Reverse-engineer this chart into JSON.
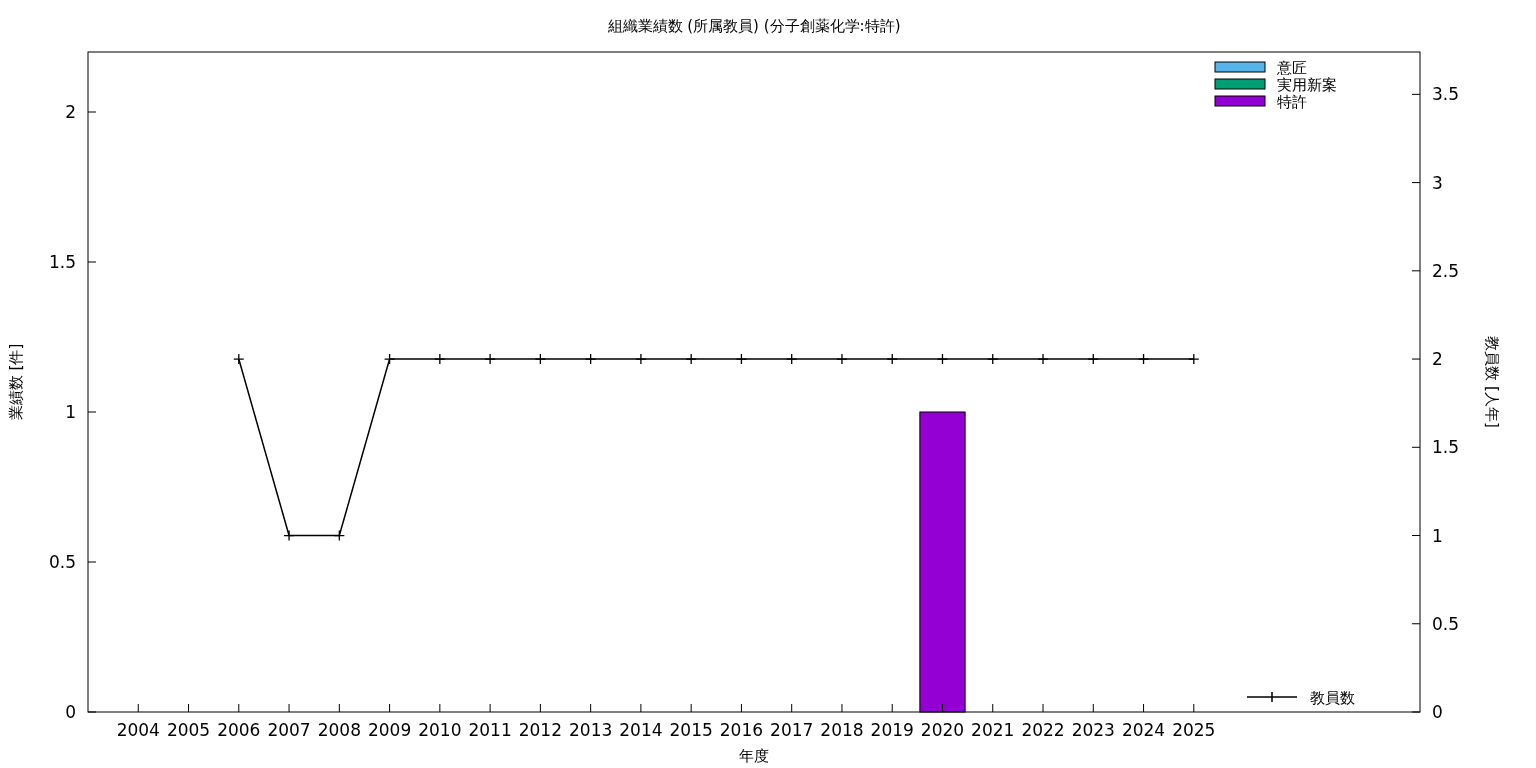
{
  "chart_data": {
    "type": "bar",
    "title": "組織業績数 (所属教員) (分子創薬化学:特許)",
    "xlabel": "年度",
    "ylabel": "業績数 [件]",
    "y2label": "教員数 [人年]",
    "x": [
      2004,
      2005,
      2006,
      2007,
      2008,
      2009,
      2010,
      2011,
      2012,
      2013,
      2014,
      2015,
      2016,
      2017,
      2018,
      2019,
      2020,
      2021,
      2022,
      2023,
      2024,
      2025
    ],
    "xlim": [
      2003,
      2029.5
    ],
    "xticks": [
      2004,
      2005,
      2006,
      2007,
      2008,
      2009,
      2010,
      2011,
      2012,
      2013,
      2014,
      2015,
      2016,
      2017,
      2018,
      2019,
      2020,
      2021,
      2022,
      2023,
      2024,
      2025
    ],
    "ylim": [
      0,
      2.2
    ],
    "yticks": [
      0,
      0.5,
      1,
      1.5,
      2
    ],
    "y2lim": [
      0,
      3.74
    ],
    "y2ticks": [
      0,
      0.5,
      1,
      1.5,
      2,
      2.5,
      3,
      3.5
    ],
    "legend": "right",
    "grid": false,
    "series": [
      {
        "name": "意匠",
        "color": "#56b4e9",
        "values": [
          0,
          0,
          0,
          0,
          0,
          0,
          0,
          0,
          0,
          0,
          0,
          0,
          0,
          0,
          0,
          0,
          0,
          0,
          0,
          0,
          0,
          0
        ]
      },
      {
        "name": "実用新案",
        "color": "#009e73",
        "values": [
          0,
          0,
          0,
          0,
          0,
          0,
          0,
          0,
          0,
          0,
          0,
          0,
          0,
          0,
          0,
          0,
          0,
          0,
          0,
          0,
          0,
          0
        ]
      },
      {
        "name": "特許",
        "color": "#9400d3",
        "values": [
          0,
          0,
          0,
          0,
          0,
          0,
          0,
          0,
          0,
          0,
          0,
          0,
          0,
          0,
          0,
          0,
          1,
          0,
          0,
          0,
          0,
          0
        ]
      },
      {
        "name": "教員数",
        "type": "line",
        "axis": "y2",
        "color": "#000000",
        "marker": "cross",
        "line_style": "solid",
        "values": [
          null,
          null,
          2,
          1,
          1,
          2,
          2,
          2,
          2,
          2,
          2,
          2,
          2,
          2,
          2,
          2,
          2,
          2,
          2,
          2,
          2,
          2
        ]
      }
    ]
  }
}
